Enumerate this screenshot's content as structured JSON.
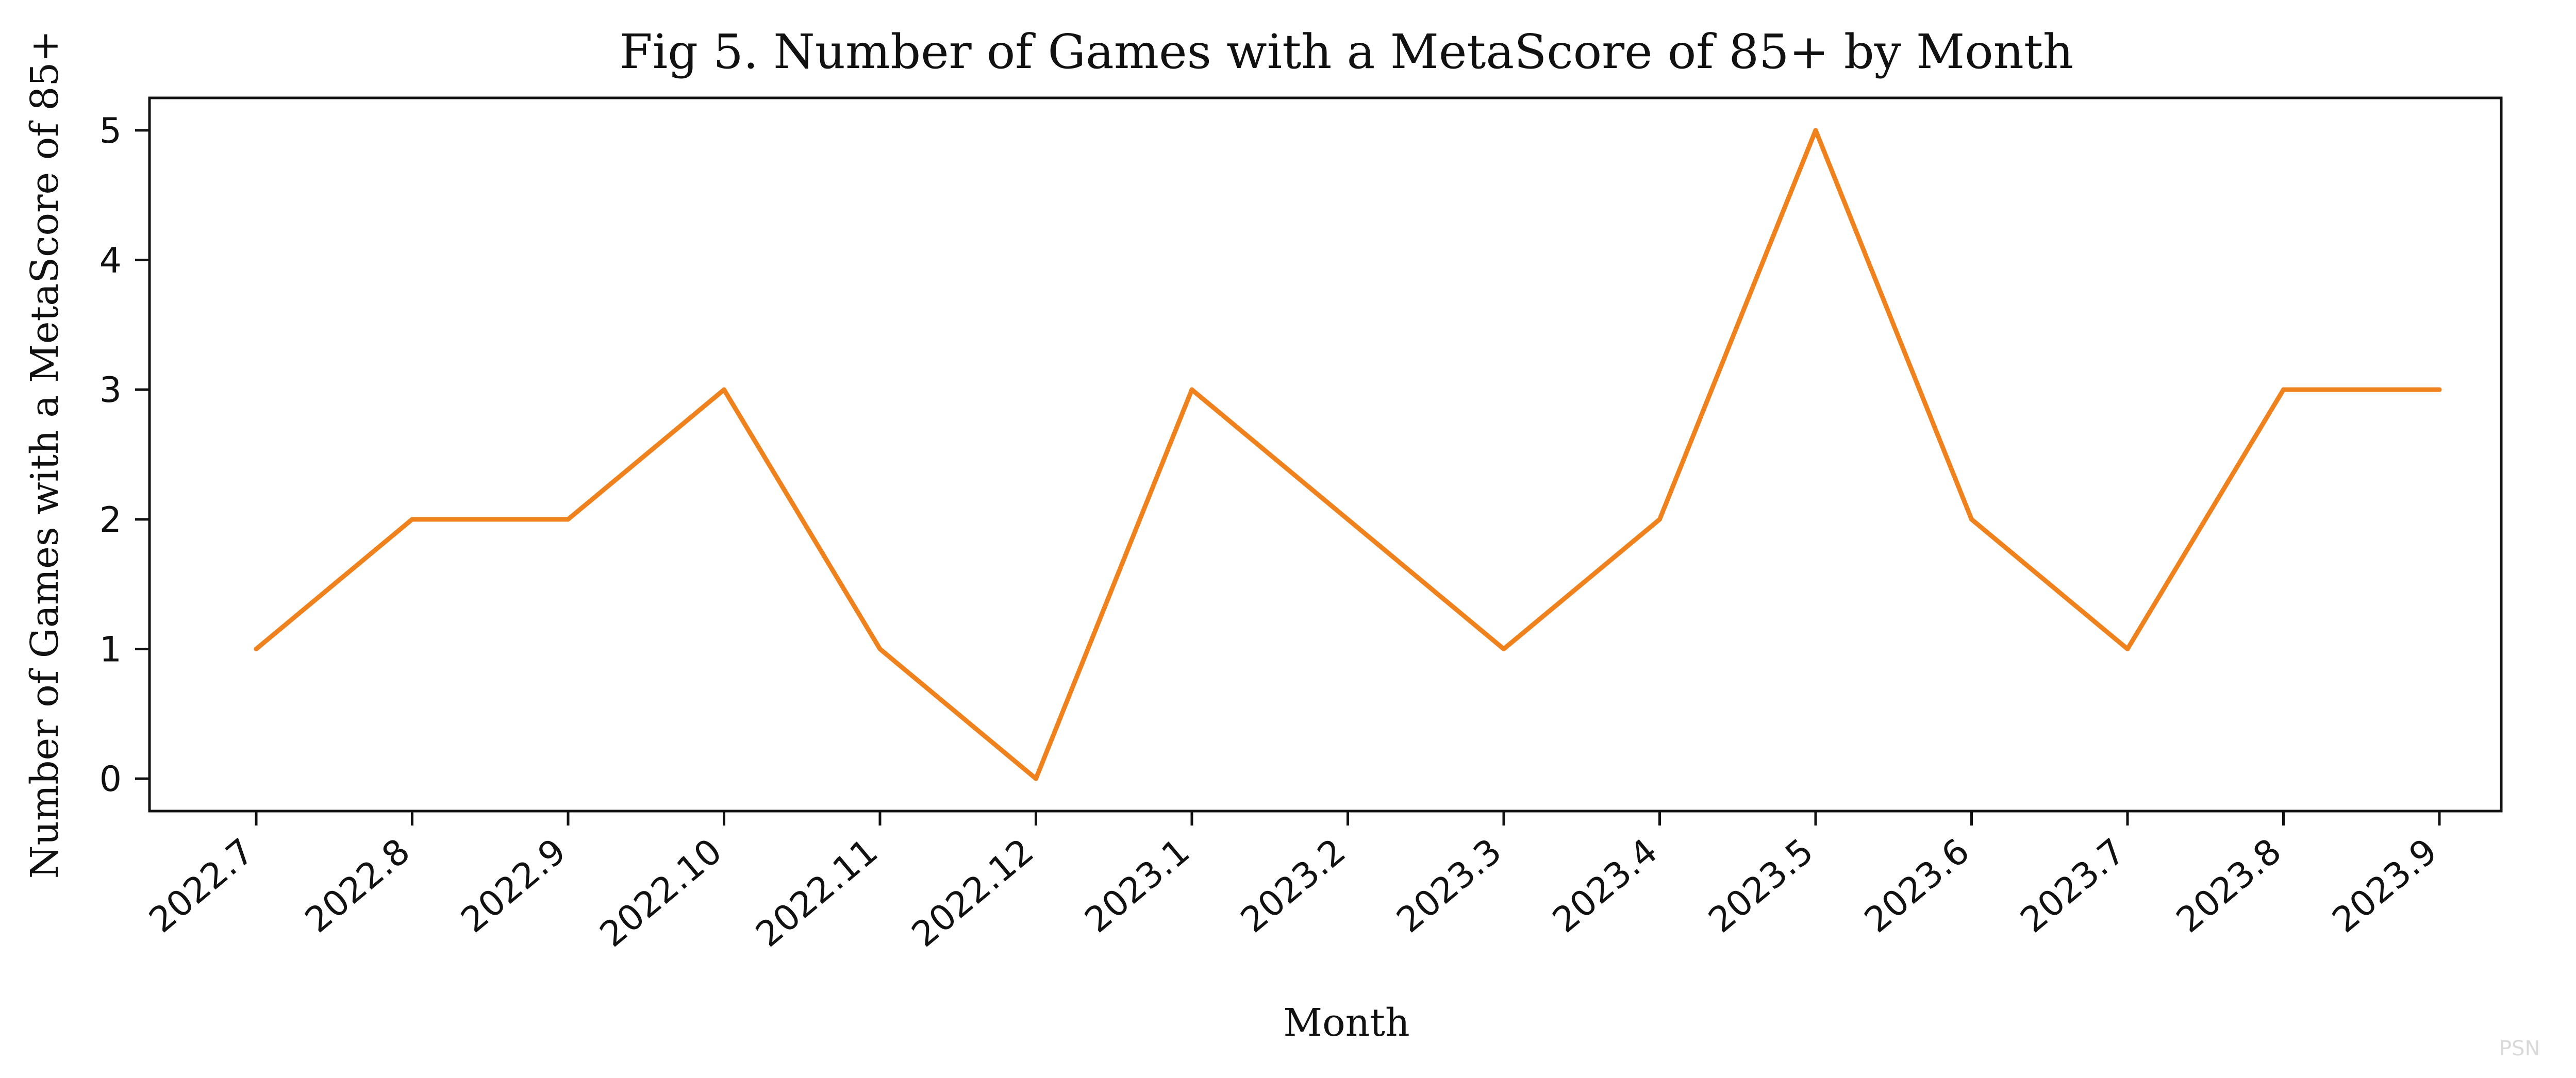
{
  "chart_data": {
    "type": "line",
    "title": "Fig 5. Number of Games with a MetaScore of 85+ by Month",
    "xlabel": "Month",
    "ylabel": "Number of Games with a MetaScore of 85+",
    "categories": [
      "2022.7",
      "2022.8",
      "2022.9",
      "2022.10",
      "2022.11",
      "2022.12",
      "2023.1",
      "2023.2",
      "2023.3",
      "2023.4",
      "2023.5",
      "2023.6",
      "2023.7",
      "2023.8",
      "2023.9"
    ],
    "series": [
      {
        "values": [
          1,
          2,
          2,
          3,
          1,
          0,
          3,
          2,
          1,
          2,
          5,
          2,
          1,
          3,
          3
        ],
        "color": "#f0821e"
      }
    ],
    "yticks": [
      0,
      1,
      2,
      3,
      4,
      5
    ],
    "ylim": [
      -0.25,
      5.25
    ],
    "grid": false,
    "legend": "none"
  },
  "watermark": "PSN"
}
